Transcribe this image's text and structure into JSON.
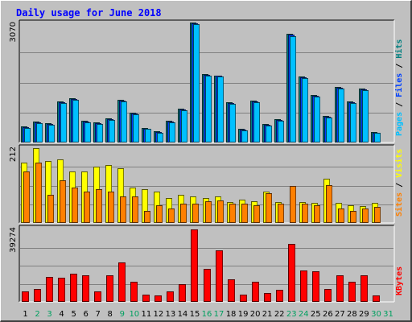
{
  "chart_data": {
    "type": "bar",
    "title": "Daily usage for June 2018",
    "categories": [
      "1",
      "2",
      "3",
      "4",
      "5",
      "6",
      "7",
      "8",
      "9",
      "10",
      "11",
      "12",
      "13",
      "14",
      "15",
      "16",
      "17",
      "18",
      "19",
      "20",
      "21",
      "22",
      "23",
      "24",
      "25",
      "26",
      "27",
      "28",
      "29",
      "30",
      "31"
    ],
    "weekend_days": [
      "2",
      "3",
      "9",
      "10",
      "16",
      "17",
      "23",
      "24",
      "30",
      "31"
    ],
    "panels": [
      {
        "id": "hits-files-pages",
        "max_label": "3070",
        "ymax": 3070,
        "right_label_parts": [
          {
            "text": "Pages",
            "color": "#00c0ff"
          },
          {
            "text": " / ",
            "color": "#000000"
          },
          {
            "text": "Files",
            "color": "#0040ff"
          },
          {
            "text": " / ",
            "color": "#000000"
          },
          {
            "text": "Hits",
            "color": "#008080"
          }
        ],
        "series": [
          {
            "name": "Hits",
            "color": "#008080",
            "values": [
              420,
              540,
              490,
              1050,
              1130,
              560,
              510,
              610,
              1100,
              760,
              380,
              290,
              560,
              860,
              3070,
              1750,
              1720,
              1030,
              340,
              1080,
              470,
              590,
              2780,
              1680,
              1210,
              670,
              1420,
              1050,
              1380,
              270,
              0
            ]
          },
          {
            "name": "Files",
            "color": "#0040ff",
            "values": [
              400,
              520,
              470,
              1030,
              1110,
              540,
              490,
              590,
              1080,
              740,
              360,
              270,
              540,
              840,
              3050,
              1730,
              1700,
              1010,
              320,
              1060,
              450,
              570,
              2760,
              1660,
              1190,
              650,
              1400,
              1030,
              1360,
              250,
              0
            ]
          },
          {
            "name": "Pages",
            "color": "#00c0ff",
            "values": [
              380,
              500,
              450,
              1010,
              1090,
              520,
              470,
              570,
              1060,
              720,
              340,
              250,
              520,
              820,
              3030,
              1710,
              1690,
              990,
              300,
              1040,
              430,
              550,
              2720,
              1640,
              1170,
              630,
              1380,
              1010,
              1340,
              240,
              0
            ]
          }
        ]
      },
      {
        "id": "visits-sites",
        "max_label": "212",
        "ymax": 212,
        "right_label_parts": [
          {
            "text": "Sites",
            "color": "#ff8000"
          },
          {
            "text": " / ",
            "color": "#000000"
          },
          {
            "text": "Visits",
            "color": "#ffff00"
          }
        ],
        "series": [
          {
            "name": "Visits",
            "color": "#ffff00",
            "values": [
              170,
              212,
              175,
              180,
              145,
              145,
              160,
              165,
              155,
              100,
              95,
              90,
              70,
              80,
              75,
              70,
              75,
              60,
              66,
              61,
              88,
              60,
              0,
              60,
              58,
              125,
              56,
              51,
              48,
              56,
              0
            ]
          },
          {
            "name": "Sites",
            "color": "#ff8000",
            "values": [
              145,
              170,
              80,
              120,
              100,
              90,
              95,
              90,
              75,
              75,
              35,
              50,
              40,
              55,
              55,
              62,
              63,
              55,
              54,
              50,
              85,
              55,
              105,
              55,
              50,
              106,
              42,
              35,
              42,
              45,
              0
            ]
          }
        ]
      },
      {
        "id": "kbytes",
        "max_label": "39274",
        "ymax": 39274,
        "right_label_parts": [
          {
            "text": "KBytes",
            "color": "#ff0000"
          }
        ],
        "series": [
          {
            "name": "KBytes",
            "color": "#ff0000",
            "values": [
              5560,
              7140,
              13420,
              13200,
              15380,
              14380,
              5860,
              14380,
              21190,
              10700,
              3960,
              3390,
              5880,
              9480,
              39274,
              17860,
              28050,
              12310,
              3930,
              10830,
              4620,
              6600,
              31410,
              16840,
              16780,
              7150,
              14450,
              10700,
              14380,
              3570,
              0
            ]
          }
        ]
      }
    ]
  }
}
